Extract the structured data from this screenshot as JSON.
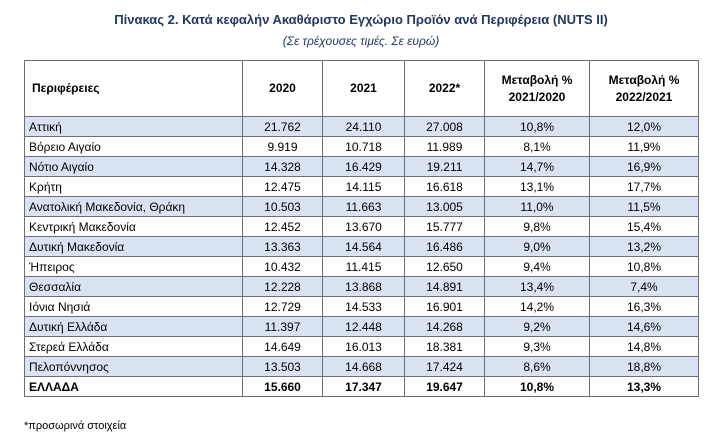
{
  "title": "Πίνακας 2. Κατά κεφαλήν Ακαθάριστο Εγχώριο Προϊόν ανά Περιφέρεια (NUTS II)",
  "subtitle": "(Σε τρέχουσες τιμές. Σε ευρώ)",
  "table": {
    "headers": [
      "Περιφέρειες",
      "2020",
      "2021",
      "2022*",
      "Μεταβολή % 2021/2020",
      "Μεταβολή % 2022/2021"
    ],
    "rows": [
      [
        "Αττική",
        "21.762",
        "24.110",
        "27.008",
        "10,8%",
        "12,0%"
      ],
      [
        "Βόρειο Αιγαίο",
        "9.919",
        "10.718",
        "11.989",
        "8,1%",
        "11,9%"
      ],
      [
        "Νότιο Αιγαίο",
        "14.328",
        "16.429",
        "19.211",
        "14,7%",
        "16,9%"
      ],
      [
        "Κρήτη",
        "12.475",
        "14.115",
        "16.618",
        "13,1%",
        "17,7%"
      ],
      [
        "Ανατολική Μακεδονία, Θράκη",
        "10.503",
        "11.663",
        "13.005",
        "11,0%",
        "11,5%"
      ],
      [
        "Κεντρική Μακεδονία",
        "12.452",
        "13.670",
        "15.777",
        "9,8%",
        "15,4%"
      ],
      [
        "Δυτική Μακεδονία",
        "13.363",
        "14.564",
        "16.486",
        "9,0%",
        "13,2%"
      ],
      [
        "Ήπειρος",
        "10.432",
        "11.415",
        "12.650",
        "9,4%",
        "10,8%"
      ],
      [
        "Θεσσαλία",
        "12.228",
        "13.868",
        "14.891",
        "13,4%",
        "7,4%"
      ],
      [
        "Ιόνια Νησιά",
        "12.729",
        "14.533",
        "16.901",
        "14,2%",
        "16,3%"
      ],
      [
        "Δυτική Ελλάδα",
        "11.397",
        "12.448",
        "14.268",
        "9,2%",
        "14,6%"
      ],
      [
        "Στερεά Ελλάδα",
        "14.649",
        "16.013",
        "18.381",
        "9,3%",
        "14,8%"
      ],
      [
        "Πελοπόννησος",
        "13.503",
        "14.668",
        "17.424",
        "8,6%",
        "18,8%"
      ]
    ],
    "total": [
      "ΕΛΛΑΔΑ",
      "15.660",
      "17.347",
      "19.647",
      "10,8%",
      "13,3%"
    ]
  },
  "footnote": "*προσωρινά στοιχεία",
  "colors": {
    "title": "#1f3864",
    "row_shade": "#dae3f3",
    "border": "#6f6f6f"
  }
}
